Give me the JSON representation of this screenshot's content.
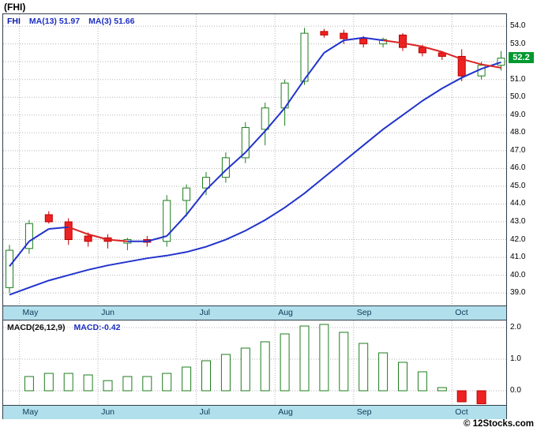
{
  "title": "(FHI)",
  "legend": {
    "symbol": "FHI",
    "ma13": "MA(13) 51.97",
    "ma3": "MA(3) 51.66"
  },
  "price_badge": {
    "text": "52.2",
    "value": 52.2
  },
  "macd": {
    "label": "MACD(26,12,9)",
    "value_label": "MACD:-0.42",
    "value": -0.42
  },
  "copyright": "© 12Stocks.com",
  "colors": {
    "badge_bg": "#00992e",
    "band_bg": "#b2dfec",
    "frame": "#33404d",
    "grid": "#b5b5b5",
    "candle_up_stroke": "#1e7d1e",
    "candle_up_fill": "#ffffff",
    "candle_down_fill": "#ee2222",
    "candle_down_stroke": "#bb0000",
    "ma_blue": "#2233cc",
    "ma_red": "#dd2222",
    "macd_bar_stroke": "#1e7d1e",
    "month_text": "#0d3a55",
    "axis_text": "#000000"
  },
  "chart_data": [
    {
      "type": "candlestick",
      "symbol": "FHI",
      "title": "FHI price with MA(13) 51.97 and MA(3) 51.66",
      "ylim": [
        38.34,
        54.67
      ],
      "y_tick_labels": [
        "54.0",
        "53.0",
        "51.0",
        "50.0",
        "49.0",
        "48.0",
        "47.0",
        "46.0",
        "45.0",
        "44.0",
        "43.0",
        "42.0",
        "41.0",
        "40.0",
        "39.0"
      ],
      "last_price": 52.2,
      "ma13_current": 51.97,
      "ma3_current": 51.66,
      "months": [
        {
          "label": "May",
          "start": 1
        },
        {
          "label": "Jun",
          "start": 5
        },
        {
          "label": "Jul",
          "start": 10
        },
        {
          "label": "Aug",
          "start": 14
        },
        {
          "label": "Sep",
          "start": 18
        },
        {
          "label": "Oct",
          "start": 23
        }
      ],
      "candles_ohlc": [
        [
          39.3,
          41.7,
          39.0,
          41.4
        ],
        [
          41.5,
          43.1,
          41.2,
          42.9
        ],
        [
          43.4,
          43.6,
          42.9,
          43.0
        ],
        [
          43.0,
          43.2,
          41.7,
          42.0
        ],
        [
          42.2,
          42.4,
          41.6,
          41.9
        ],
        [
          42.1,
          42.3,
          41.5,
          41.9
        ],
        [
          41.8,
          42.1,
          41.4,
          42.0
        ],
        [
          42.0,
          42.2,
          41.6,
          41.85
        ],
        [
          41.9,
          44.5,
          41.6,
          44.2
        ],
        [
          44.2,
          45.1,
          43.3,
          44.9
        ],
        [
          44.9,
          45.8,
          44.5,
          45.5
        ],
        [
          45.5,
          46.9,
          45.2,
          46.6
        ],
        [
          46.6,
          48.6,
          46.3,
          48.3
        ],
        [
          48.2,
          49.7,
          47.3,
          49.4
        ],
        [
          49.4,
          51.0,
          48.4,
          50.8
        ],
        [
          50.9,
          53.9,
          50.7,
          53.6
        ],
        [
          53.7,
          53.85,
          53.35,
          53.5
        ],
        [
          53.6,
          53.8,
          53.0,
          53.3
        ],
        [
          53.3,
          53.45,
          52.8,
          53.0
        ],
        [
          53.0,
          53.35,
          52.8,
          53.25
        ],
        [
          53.5,
          53.6,
          52.6,
          52.8
        ],
        [
          52.8,
          52.95,
          52.3,
          52.5
        ],
        [
          52.5,
          52.6,
          52.1,
          52.3
        ],
        [
          52.3,
          52.7,
          50.9,
          51.2
        ],
        [
          51.2,
          52.0,
          51.0,
          51.8
        ],
        [
          51.8,
          52.6,
          51.5,
          52.2
        ]
      ],
      "ma13": [
        38.9,
        39.3,
        39.7,
        40.0,
        40.3,
        40.55,
        40.75,
        40.95,
        41.1,
        41.3,
        41.6,
        42.0,
        42.5,
        43.1,
        43.8,
        44.6,
        45.5,
        46.4,
        47.3,
        48.2,
        49.0,
        49.8,
        50.5,
        51.1,
        51.6,
        51.97
      ],
      "ma3": [
        40.5,
        41.9,
        42.6,
        42.7,
        42.3,
        42.0,
        41.9,
        41.9,
        42.2,
        43.4,
        44.8,
        45.9,
        46.9,
        48.1,
        49.4,
        51.0,
        52.5,
        53.2,
        53.35,
        53.2,
        53.05,
        52.85,
        52.55,
        52.15,
        51.85,
        51.66
      ],
      "ma3_red_idx": [
        4,
        5,
        6,
        20,
        21,
        22,
        23,
        24,
        25
      ]
    },
    {
      "type": "bar",
      "title": "MACD(26,12,9)",
      "current": -0.42,
      "ylim": [
        -0.425,
        2.225
      ],
      "y_tick_labels": [
        "2.0",
        "1.0",
        "0.0"
      ],
      "gridline_values": [
        2.0,
        1.0,
        0.0
      ],
      "values": [
        null,
        0.45,
        0.55,
        0.55,
        0.5,
        0.32,
        0.45,
        0.45,
        0.55,
        0.75,
        0.95,
        1.15,
        1.35,
        1.55,
        1.8,
        2.05,
        2.1,
        1.85,
        1.5,
        1.2,
        0.9,
        0.6,
        0.1,
        -0.35,
        -0.42,
        null
      ]
    }
  ]
}
